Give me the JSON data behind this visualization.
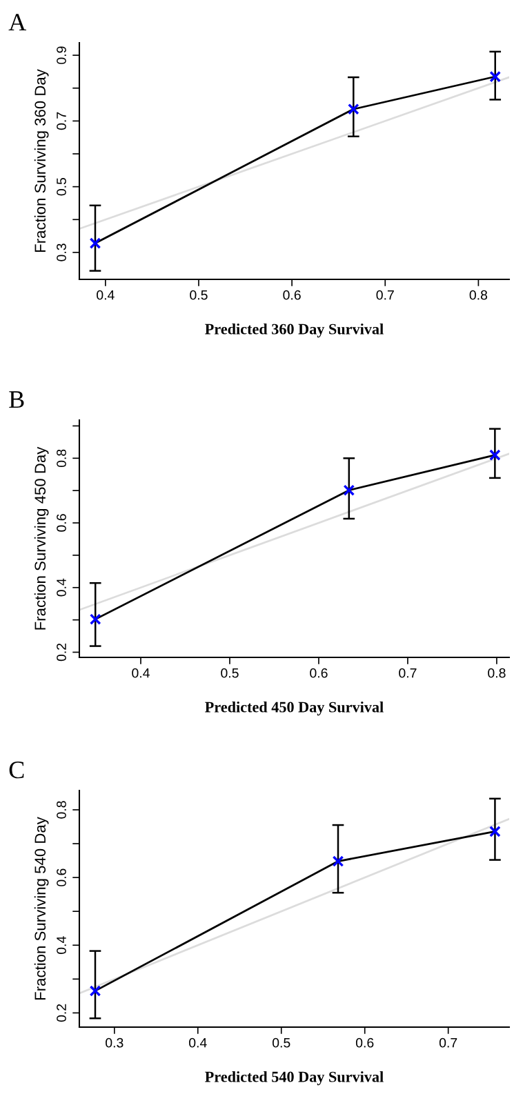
{
  "chart_data": [
    {
      "type": "line",
      "title": "A",
      "xlabel": "Predicted 360 Day Survival",
      "ylabel": "Fraction Surviving 360 Day",
      "xlim": [
        0.372,
        0.833
      ],
      "ylim": [
        0.218,
        0.938
      ],
      "xticks": [
        0.4,
        0.5,
        0.6,
        0.7,
        0.8
      ],
      "yticks": [
        {
          "value": 0.3,
          "label": "0.3"
        },
        {
          "value": 0.4,
          "label": null
        },
        {
          "value": 0.5,
          "label": "0.5"
        },
        {
          "value": 0.6,
          "label": null
        },
        {
          "value": 0.7,
          "label": "0.7"
        },
        {
          "value": 0.8,
          "label": null
        },
        {
          "value": 0.9,
          "label": "0.9"
        }
      ],
      "grid": false,
      "legend": false,
      "series": [
        {
          "color": "#dcdcdc",
          "x": [
            0.372,
            0.833
          ],
          "values": [
            0.372,
            0.833
          ],
          "marker": "none"
        },
        {
          "color": "#000000",
          "x": [
            0.389,
            0.666,
            0.818
          ],
          "values": [
            0.328,
            0.736,
            0.835
          ],
          "marker": "none",
          "errors": [
            [
              0.244,
              0.443
            ],
            [
              0.653,
              0.833
            ],
            [
              0.765,
              0.911
            ]
          ]
        },
        {
          "type": "scatter",
          "color": "#0000ff",
          "x": [
            0.389,
            0.666,
            0.818
          ],
          "values": [
            0.328,
            0.736,
            0.835
          ],
          "marker": "cross"
        }
      ]
    },
    {
      "type": "line",
      "title": "B",
      "xlabel": "Predicted 450 Day Survival",
      "ylabel": "Fraction Surviving 450 Day",
      "xlim": [
        0.331,
        0.814
      ],
      "ylim": [
        0.184,
        0.918
      ],
      "xticks": [
        0.4,
        0.5,
        0.6,
        0.7,
        0.8
      ],
      "yticks": [
        {
          "value": 0.2,
          "label": "0.2"
        },
        {
          "value": 0.3,
          "label": null
        },
        {
          "value": 0.4,
          "label": "0.4"
        },
        {
          "value": 0.5,
          "label": null
        },
        {
          "value": 0.6,
          "label": "0.6"
        },
        {
          "value": 0.7,
          "label": null
        },
        {
          "value": 0.8,
          "label": "0.8"
        },
        {
          "value": 0.9,
          "label": null
        }
      ],
      "grid": false,
      "legend": false,
      "series": [
        {
          "color": "#dcdcdc",
          "x": [
            0.331,
            0.814
          ],
          "values": [
            0.331,
            0.814
          ],
          "marker": "none"
        },
        {
          "color": "#000000",
          "x": [
            0.349,
            0.634,
            0.798
          ],
          "values": [
            0.302,
            0.701,
            0.81
          ],
          "marker": "none",
          "errors": [
            [
              0.219,
              0.414
            ],
            [
              0.613,
              0.8
            ],
            [
              0.739,
              0.891
            ]
          ]
        },
        {
          "type": "scatter",
          "color": "#0000ff",
          "x": [
            0.349,
            0.634,
            0.798
          ],
          "values": [
            0.302,
            0.701,
            0.81
          ],
          "marker": "cross"
        }
      ]
    },
    {
      "type": "line",
      "title": "C",
      "xlabel": "Predicted 540 Day Survival",
      "ylabel": "Fraction Surviving 540 Day",
      "xlim": [
        0.258,
        0.773
      ],
      "ylim": [
        0.158,
        0.857
      ],
      "xticks": [
        0.3,
        0.4,
        0.5,
        0.6,
        0.7
      ],
      "yticks": [
        {
          "value": 0.2,
          "label": "0.2"
        },
        {
          "value": 0.3,
          "label": null
        },
        {
          "value": 0.4,
          "label": "0.4"
        },
        {
          "value": 0.5,
          "label": null
        },
        {
          "value": 0.6,
          "label": "0.6"
        },
        {
          "value": 0.7,
          "label": null
        },
        {
          "value": 0.8,
          "label": "0.8"
        }
      ],
      "grid": false,
      "legend": false,
      "series": [
        {
          "color": "#dcdcdc",
          "x": [
            0.258,
            0.773
          ],
          "values": [
            0.258,
            0.773
          ],
          "marker": "none"
        },
        {
          "color": "#000000",
          "x": [
            0.277,
            0.568,
            0.756
          ],
          "values": [
            0.265,
            0.648,
            0.736
          ],
          "marker": "none",
          "errors": [
            [
              0.184,
              0.383
            ],
            [
              0.555,
              0.755
            ],
            [
              0.652,
              0.833
            ]
          ]
        },
        {
          "type": "scatter",
          "color": "#0000ff",
          "x": [
            0.277,
            0.568,
            0.756
          ],
          "values": [
            0.265,
            0.648,
            0.736
          ],
          "marker": "cross"
        }
      ]
    }
  ]
}
